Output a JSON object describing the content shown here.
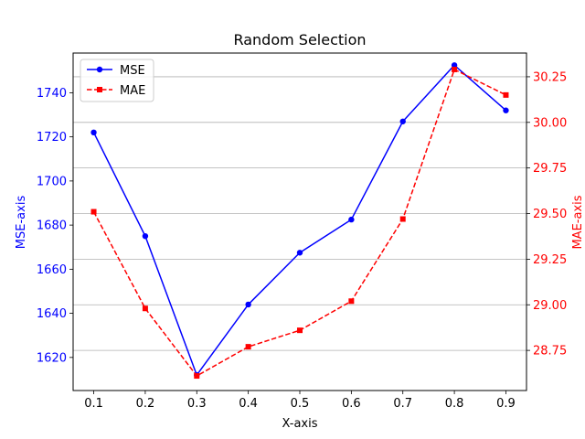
{
  "chart_data": {
    "type": "line",
    "title": "Random Selection",
    "xlabel": "X-axis",
    "x": [
      0.1,
      0.2,
      0.3,
      0.4,
      0.5,
      0.6,
      0.7,
      0.8,
      0.9
    ],
    "x_ticks": [
      "0.1",
      "0.2",
      "0.3",
      "0.4",
      "0.5",
      "0.6",
      "0.7",
      "0.8",
      "0.9"
    ],
    "xlim": [
      0.06,
      0.94
    ],
    "left_axis": {
      "label": "MSE-axis",
      "color": "#0000ff",
      "ylim": [
        1605,
        1758
      ],
      "ticks": [
        1620,
        1640,
        1660,
        1680,
        1700,
        1720,
        1740
      ],
      "tick_labels": [
        "1620",
        "1640",
        "1660",
        "1680",
        "1700",
        "1720",
        "1740"
      ]
    },
    "right_axis": {
      "label": "MAE-axis",
      "color": "#ff0000",
      "ylim": [
        28.53,
        30.38
      ],
      "ticks": [
        28.75,
        29.0,
        29.25,
        29.5,
        29.75,
        30.0,
        30.25
      ],
      "tick_labels": [
        "28.75",
        "29.00",
        "29.25",
        "29.50",
        "29.75",
        "30.00",
        "30.25"
      ]
    },
    "grid": "horizontal lines at right-axis ticks",
    "legend_position": "top-left",
    "series": [
      {
        "name": "MSE",
        "axis": "left",
        "color": "#0000ff",
        "style": "solid",
        "marker": "circle",
        "values": [
          1722,
          1675,
          1612,
          1644,
          1667.5,
          1682.5,
          1727,
          1752.5,
          1732
        ]
      },
      {
        "name": "MAE",
        "axis": "right",
        "color": "#ff0000",
        "style": "dashed",
        "marker": "square",
        "values": [
          29.51,
          28.98,
          28.61,
          28.77,
          28.86,
          29.02,
          29.47,
          30.29,
          30.15
        ]
      }
    ]
  }
}
